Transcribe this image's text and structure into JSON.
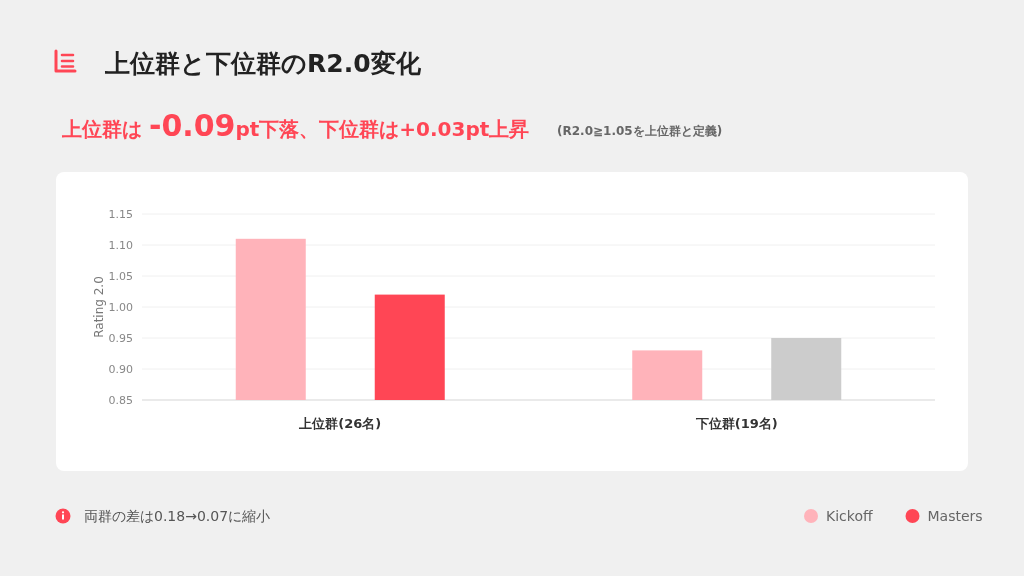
{
  "chart_data": {
    "type": "bar",
    "title": "上位群と下位群のR2.0変化",
    "subtitle": "上位群は -0.09pt下落、下位群は+0.03pt上昇",
    "annotations": [
      "(R2.0≧1.05を上位群と定義)",
      "両群の差は0.18→0.07に縮小"
    ],
    "ylabel": "Rating 2.0",
    "categories": [
      "上位群(26名)",
      "下位群(19名)"
    ],
    "series": [
      {
        "name": "Kickoff",
        "color": "#ffb3ba",
        "values": [
          1.11,
          0.93
        ]
      },
      {
        "name": "Masters",
        "color": "#ff4655",
        "colors": [
          "#ff4655",
          "#cccccc"
        ],
        "values": [
          1.02,
          0.95
        ]
      }
    ],
    "ylim": [
      0.85,
      1.15
    ],
    "yticks": [
      {
        "value": 0.85,
        "label": "0.85"
      },
      {
        "value": 0.9,
        "label": "0.90"
      },
      {
        "value": 0.95,
        "label": "0.95"
      },
      {
        "value": 1.0,
        "label": "1.00"
      },
      {
        "value": 1.05,
        "label": "1.05"
      },
      {
        "value": 1.1,
        "label": "1.10"
      },
      {
        "value": 1.15,
        "label": "1.15"
      }
    ],
    "grid": "y",
    "legend": "bottom right"
  }
}
